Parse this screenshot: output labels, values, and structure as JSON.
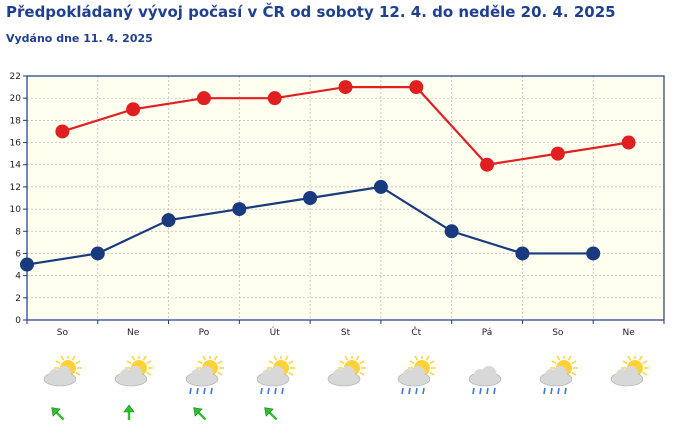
{
  "header": {
    "title": "Předpokládaný vývoj počasí v ČR od soboty 12. 4. do neděle 20. 4. 2025",
    "issued": "Vydáno dne 11. 4. 2025"
  },
  "chart_data": {
    "type": "line",
    "categories": [
      "So",
      "Ne",
      "Po",
      "Út",
      "St",
      "Čt",
      "Pá",
      "So",
      "Ne"
    ],
    "ylim": [
      0,
      22
    ],
    "yticks": [
      0,
      2,
      4,
      6,
      8,
      10,
      12,
      14,
      16,
      18,
      20,
      22
    ],
    "grid": true,
    "series": [
      {
        "values": [
          17,
          19,
          20,
          20,
          21,
          21,
          14,
          15,
          16
        ],
        "color": "#e02020"
      },
      {
        "values": [
          5,
          6,
          9,
          10,
          11,
          12,
          8,
          6,
          6
        ],
        "color": "#1a3a80"
      }
    ],
    "minimum_series_points": [
      {
        "x_slot": 0,
        "value": 5
      },
      {
        "x_slot": 1,
        "value": 6
      },
      {
        "x_slot": 2,
        "value": 9
      },
      {
        "x_slot": 3,
        "value": 10
      },
      {
        "x_slot": 4,
        "value": 11
      },
      {
        "x_slot": 5,
        "value": 12
      },
      {
        "x_slot": 6,
        "value": 8
      },
      {
        "x_slot": 7,
        "value": 6
      },
      {
        "x_slot": 8,
        "value": 6
      }
    ]
  },
  "weather_icons": [
    {
      "day": "So",
      "icon": "sun-behind-cloud-icon",
      "rain": false,
      "wind": "arrow-northwest-icon"
    },
    {
      "day": "Ne",
      "icon": "sun-behind-cloud-icon",
      "rain": false,
      "wind": "arrow-north-icon"
    },
    {
      "day": "Po",
      "icon": "sun-cloud-rain-icon",
      "rain": true,
      "wind": "arrow-northwest-icon"
    },
    {
      "day": "Út",
      "icon": "sun-cloud-rain-icon",
      "rain": true,
      "wind": "arrow-northwest-icon"
    },
    {
      "day": "St",
      "icon": "sun-behind-cloud-icon",
      "rain": false,
      "wind": ""
    },
    {
      "day": "Čt",
      "icon": "sun-cloud-rain-icon",
      "rain": true,
      "wind": ""
    },
    {
      "day": "Pá",
      "icon": "cloud-rain-icon",
      "rain": true,
      "wind": ""
    },
    {
      "day": "So",
      "icon": "sun-cloud-rain-icon",
      "rain": true,
      "wind": ""
    },
    {
      "day": "Ne",
      "icon": "sun-behind-cloud-icon",
      "rain": false,
      "wind": ""
    }
  ],
  "colors": {
    "title": "#1f3f8f",
    "plot_bg": "#fffff0",
    "axis": "#1a3a80",
    "max_line": "#e02020",
    "min_line": "#1a3a80",
    "sun": "#ffd23a",
    "cloud": "#d8d8d8",
    "rain": "#3a78d8",
    "arrow": "#2ec02e"
  }
}
